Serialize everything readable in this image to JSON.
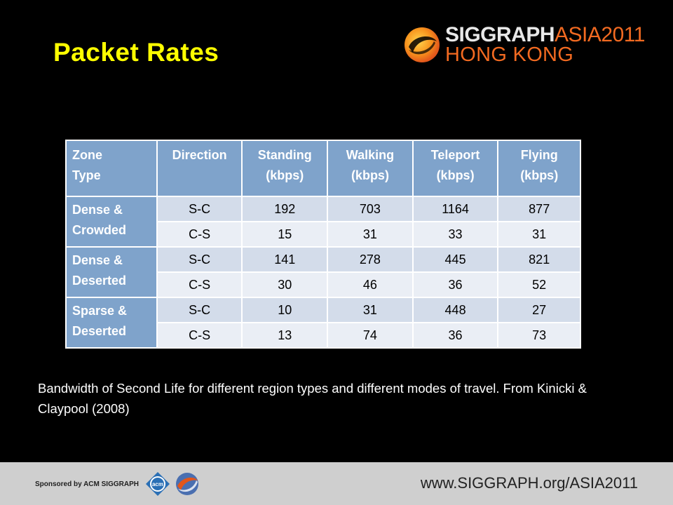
{
  "slide": {
    "title": "Packet Rates",
    "logo": {
      "line1_main": "SIGGRAPH",
      "line1_accent": "ASIA2011",
      "line2": "HONG KONG"
    },
    "caption": "Bandwidth of Second Life for different region types and different modes of travel. From Kinicki & Claypool  (2008)"
  },
  "table": {
    "headers": {
      "zone": [
        "Zone",
        "Type"
      ],
      "direction": "Direction",
      "standing": [
        "Standing",
        "(kbps)"
      ],
      "walking": [
        "Walking",
        "(kbps)"
      ],
      "teleport": [
        "Teleport",
        "(kbps)"
      ],
      "flying": [
        "Flying",
        "(kbps)"
      ]
    },
    "groups": [
      {
        "zone": [
          "Dense &",
          "Crowded"
        ],
        "rows": [
          {
            "direction": "S-C",
            "standing": "192",
            "walking": "703",
            "teleport": "1164",
            "flying": "877"
          },
          {
            "direction": "C-S",
            "standing": "15",
            "walking": "31",
            "teleport": "33",
            "flying": "31"
          }
        ]
      },
      {
        "zone": [
          "Dense &",
          "Deserted"
        ],
        "rows": [
          {
            "direction": "S-C",
            "standing": "141",
            "walking": "278",
            "teleport": "445",
            "flying": "821"
          },
          {
            "direction": "C-S",
            "standing": "30",
            "walking": "46",
            "teleport": "36",
            "flying": "52"
          }
        ]
      },
      {
        "zone": [
          "Sparse &",
          "Deserted"
        ],
        "rows": [
          {
            "direction": "S-C",
            "standing": "10",
            "walking": "31",
            "teleport": "448",
            "flying": "27"
          },
          {
            "direction": "C-S",
            "standing": "13",
            "walking": "74",
            "teleport": "36",
            "flying": "73"
          }
        ]
      }
    ]
  },
  "footer": {
    "sponsor": "Sponsored by ACM SIGGRAPH",
    "acm_icon_label": "acm",
    "url": "www.SIGGRAPH.org/ASIA2011"
  },
  "colors": {
    "title": "#ffff00",
    "accent_orange": "#f26a21",
    "header_blue": "#7fa3cb",
    "row_dark": "#d3dcea",
    "row_light": "#eaeef5",
    "footer_gray": "#cfcfcf"
  }
}
